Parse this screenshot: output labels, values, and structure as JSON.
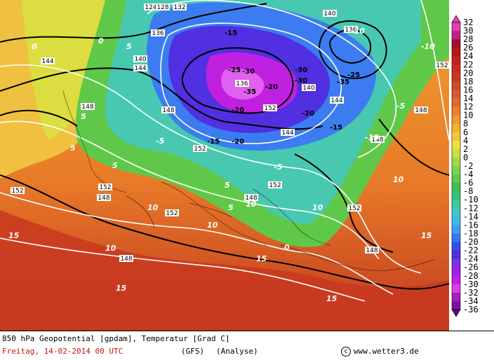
{
  "caption": {
    "title": "850 hPa Geopotential [gpdam], Temperatur [Grad C]",
    "date": "Freitag, 14-02-2014  00 UTC",
    "model": "(GFS)",
    "analysis": "(Analyse)",
    "copyright": "www.wetter3.de",
    "copyright_symbol": "c"
  },
  "legend": {
    "values": [
      "32",
      "30",
      "28",
      "26",
      "24",
      "22",
      "20",
      "18",
      "16",
      "14",
      "12",
      "10",
      "8",
      "6",
      "4",
      "2",
      "0",
      "-2",
      "-4",
      "-6",
      "-8",
      "-10",
      "-12",
      "-14",
      "-16",
      "-18",
      "-20",
      "-22",
      "-24",
      "-26",
      "-28",
      "-30",
      "-32",
      "-34",
      "-36"
    ],
    "colors": [
      "#e040b0",
      "#c02080",
      "#a01030",
      "#b01818",
      "#c02020",
      "#d02828",
      "#c83820",
      "#d04828",
      "#d85a30",
      "#e06a30",
      "#e88030",
      "#f09838",
      "#f0b030",
      "#f0c840",
      "#f0e040",
      "#c8e040",
      "#a0d848",
      "#80d050",
      "#60c850",
      "#40c050",
      "#38c078",
      "#40c8a0",
      "#40c8c8",
      "#40b8e0",
      "#40a0f0",
      "#3878f0",
      "#3050e8",
      "#5030e0",
      "#8030e0",
      "#a020e0",
      "#c020e0",
      "#d840e8",
      "#a020c0",
      "#8010a0",
      "#600080"
    ]
  },
  "map": {
    "temperature_labels": [
      {
        "t": "0"
      },
      {
        "t": "0"
      },
      {
        "t": "5"
      },
      {
        "t": "5"
      },
      {
        "t": "5"
      },
      {
        "t": "-5"
      },
      {
        "t": "-15"
      },
      {
        "t": "-25"
      },
      {
        "t": "-30"
      },
      {
        "t": "-35"
      },
      {
        "t": "-20"
      },
      {
        "t": "-30"
      },
      {
        "t": "-20"
      },
      {
        "t": "-25"
      },
      {
        "t": "-15"
      },
      {
        "t": "-10"
      },
      {
        "t": "-5"
      },
      {
        "t": "-10"
      },
      {
        "t": "5"
      },
      {
        "t": "10"
      },
      {
        "t": "15"
      },
      {
        "t": "10"
      },
      {
        "t": "15"
      },
      {
        "t": "0"
      },
      {
        "t": "-5"
      },
      {
        "t": "-10"
      },
      {
        "t": "5"
      },
      {
        "t": "10"
      },
      {
        "t": "15"
      },
      {
        "t": "10"
      },
      {
        "t": "15"
      },
      {
        "t": "10"
      },
      {
        "t": "15"
      },
      {
        "t": "-15"
      },
      {
        "t": "-20"
      },
      {
        "t": "-30"
      },
      {
        "t": "-35"
      },
      {
        "t": "-20"
      },
      {
        "t": "10"
      },
      {
        "t": "5"
      }
    ],
    "geopotential_labels": [
      "124",
      "128",
      "132",
      "136",
      "140",
      "144",
      "148",
      "152",
      "152",
      "148",
      "144",
      "140",
      "136",
      "152",
      "148",
      "144",
      "140",
      "152",
      "148",
      "152",
      "136",
      "144",
      "152",
      "148",
      "152",
      "148",
      "152",
      "148",
      "148"
    ]
  }
}
